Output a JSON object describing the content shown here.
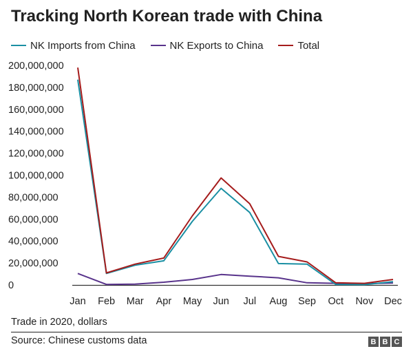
{
  "chart_data": {
    "type": "line",
    "title": "Tracking North Korean trade with China",
    "xlabel": "",
    "ylabel": "",
    "categories": [
      "Jan",
      "Feb",
      "Mar",
      "Apr",
      "May",
      "Jun",
      "Jul",
      "Aug",
      "Sep",
      "Oct",
      "Nov",
      "Dec"
    ],
    "ylim": [
      0,
      200000000
    ],
    "yticks": [
      0,
      20000000,
      40000000,
      60000000,
      80000000,
      100000000,
      120000000,
      140000000,
      160000000,
      180000000,
      200000000
    ],
    "ytick_labels": [
      "0",
      "20,000,000",
      "40,000,000",
      "60,000,000",
      "80,000,000",
      "100,000,000",
      "120,000,000",
      "140,000,000",
      "160,000,000",
      "180,000,000",
      "200,000,000"
    ],
    "series": [
      {
        "name": "NK Imports from China",
        "color": "#1a8fa3",
        "values": [
          187000000,
          10500000,
          18000000,
          22000000,
          58000000,
          88000000,
          66000000,
          19500000,
          19000000,
          500000,
          300000,
          3000000
        ]
      },
      {
        "name": "NK Exports to China",
        "color": "#58338b",
        "values": [
          10500000,
          500000,
          800000,
          2500000,
          5000000,
          9500000,
          8000000,
          6500000,
          2000000,
          1500000,
          1200000,
          1800000
        ]
      },
      {
        "name": "Total",
        "color": "#a51c1c",
        "values": [
          198000000,
          11000000,
          19000000,
          24500000,
          63000000,
          97500000,
          74000000,
          26000000,
          21000000,
          2000000,
          1500000,
          5000000
        ]
      }
    ],
    "legend_position": "top-left",
    "grid": false
  },
  "footer": {
    "note": "Trade in 2020, dollars",
    "source": "Source: Chinese customs data",
    "logo_letters": [
      "B",
      "B",
      "C"
    ]
  }
}
